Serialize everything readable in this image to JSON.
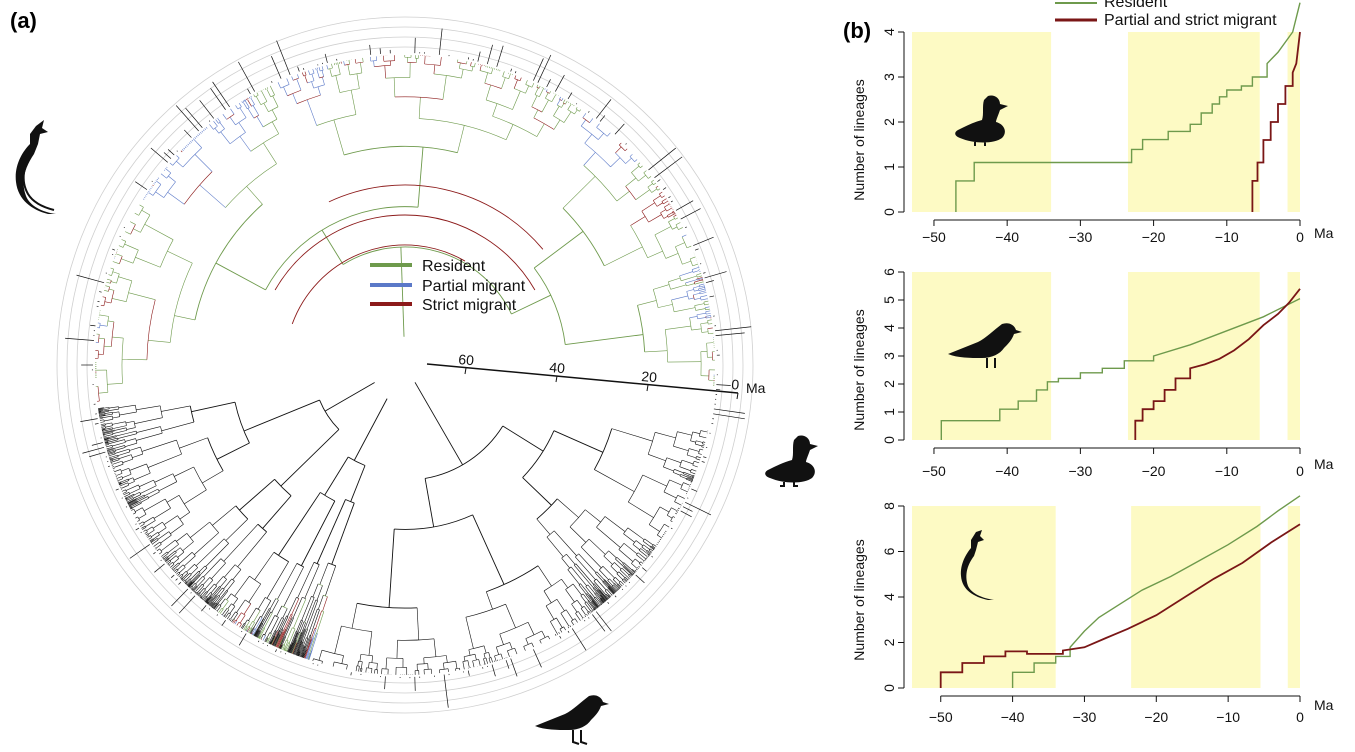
{
  "figure": {
    "panel_a_label": "(a)",
    "panel_b_label": "(b)"
  },
  "colors": {
    "resident": "#6e9a4c",
    "partial_migrant": "#5b79c8",
    "strict_migrant": "#8c1a1a",
    "partial_and_strict": "#7a1616",
    "highlight": "#fdfac4",
    "black_clade": "#111111"
  },
  "tree_legend": {
    "items": [
      {
        "label": "Resident",
        "color": "#6e9a4c"
      },
      {
        "label": "Partial migrant",
        "color": "#5b79c8"
      },
      {
        "label": "Strict migrant",
        "color": "#8c1a1a"
      }
    ]
  },
  "tree_scale": {
    "ticks": [
      "60",
      "40",
      "20",
      "0"
    ],
    "unit": "Ma"
  },
  "icons": [
    "bird-long-tail-silhouette-icon",
    "duck-silhouette-icon",
    "gull-silhouette-icon"
  ],
  "ltt_legend": {
    "items": [
      {
        "label": "Resident",
        "color": "#6e9a4c"
      },
      {
        "label": "Partial and strict migrant",
        "color": "#7a1616"
      }
    ]
  },
  "chart_data": [
    {
      "type": "line",
      "panel": "b-top",
      "icon": "duck-silhouette-icon",
      "ylabel": "Number of lineages",
      "xlabel": "Ma",
      "xlim": [
        -53,
        0
      ],
      "ylim": [
        0,
        4
      ],
      "xticks": [
        -50,
        -40,
        -30,
        -20,
        -10,
        0
      ],
      "yticks": [
        0,
        1,
        2,
        3,
        4
      ],
      "highlights": [
        [
          -53,
          -34
        ],
        [
          -23.5,
          -5.5
        ],
        [
          -1.7,
          0
        ]
      ],
      "series": [
        {
          "name": "Resident",
          "color": "#6e9a4c",
          "x": [
            -47,
            -47,
            -44.5,
            -44.5,
            -23,
            -23,
            -21.5,
            -21.5,
            -18,
            -18,
            -15,
            -15,
            -13.5,
            -13.5,
            -12,
            -12,
            -11,
            -11,
            -10,
            -10,
            -8,
            -8,
            -6.5,
            -6.5,
            -4.5,
            -4.5,
            -3,
            -1,
            0
          ],
          "y": [
            0,
            0.69,
            0.69,
            1.1,
            1.1,
            1.39,
            1.39,
            1.61,
            1.61,
            1.79,
            1.79,
            1.95,
            1.95,
            2.2,
            2.2,
            2.4,
            2.4,
            2.56,
            2.56,
            2.71,
            2.71,
            2.8,
            2.8,
            3.0,
            3.0,
            3.3,
            3.55,
            4.0,
            4.65
          ]
        },
        {
          "name": "Partial and strict migrant",
          "color": "#7a1616",
          "x": [
            -6.5,
            -6.5,
            -5.8,
            -5.8,
            -5.0,
            -5.0,
            -4.0,
            -4.0,
            -3.0,
            -3.0,
            -2.0,
            -2.0,
            -1.0,
            -1.0,
            -0.5,
            0
          ],
          "y": [
            0,
            0.69,
            0.69,
            1.1,
            1.1,
            1.6,
            1.6,
            2.0,
            2.0,
            2.4,
            2.4,
            2.8,
            2.8,
            3.1,
            3.3,
            4.0
          ]
        }
      ]
    },
    {
      "type": "line",
      "panel": "b-middle",
      "icon": "gull-silhouette-icon",
      "ylabel": "Number of lineages",
      "xlabel": "Ma",
      "xlim": [
        -53,
        0
      ],
      "ylim": [
        0,
        6
      ],
      "xticks": [
        -50,
        -40,
        -30,
        -20,
        -10,
        0
      ],
      "yticks": [
        0,
        1,
        2,
        3,
        4,
        5,
        6
      ],
      "highlights": [
        [
          -53,
          -34
        ],
        [
          -23.5,
          -5.5
        ],
        [
          -1.7,
          0
        ]
      ],
      "series": [
        {
          "name": "Resident",
          "color": "#6e9a4c",
          "x": [
            -49,
            -49,
            -41,
            -41,
            -38.5,
            -38.5,
            -36,
            -36,
            -34.5,
            -34.5,
            -33,
            -33,
            -30,
            -30,
            -27,
            -27,
            -24,
            -24,
            -20,
            -20,
            -15,
            -10,
            -5,
            0
          ],
          "y": [
            0,
            0.69,
            0.69,
            1.1,
            1.1,
            1.39,
            1.39,
            1.79,
            1.79,
            2.08,
            2.08,
            2.2,
            2.2,
            2.4,
            2.4,
            2.56,
            2.56,
            2.83,
            2.83,
            3.0,
            3.4,
            3.9,
            4.4,
            5.05
          ]
        },
        {
          "name": "Partial and strict migrant",
          "color": "#7a1616",
          "x": [
            -22.5,
            -22.5,
            -21.5,
            -21.5,
            -20,
            -20,
            -18.5,
            -18.5,
            -17,
            -17,
            -15,
            -15,
            -13,
            -11,
            -9,
            -7,
            -5,
            -3,
            -1.5,
            0
          ],
          "y": [
            0,
            0.69,
            0.69,
            1.1,
            1.1,
            1.39,
            1.39,
            1.79,
            1.79,
            2.2,
            2.2,
            2.56,
            2.7,
            2.9,
            3.2,
            3.6,
            4.1,
            4.5,
            4.9,
            5.4
          ]
        }
      ]
    },
    {
      "type": "line",
      "panel": "b-bottom",
      "icon": "bird-long-tail-silhouette-icon",
      "ylabel": "Number of lineages",
      "xlabel": "Ma",
      "xlim": [
        -54,
        0
      ],
      "ylim": [
        0,
        8
      ],
      "xticks": [
        -50,
        -40,
        -30,
        -20,
        -10,
        0
      ],
      "yticks": [
        0,
        2,
        4,
        6,
        8
      ],
      "highlights": [
        [
          -54,
          -34
        ],
        [
          -23.5,
          -5.5
        ],
        [
          -1.7,
          0
        ]
      ],
      "series": [
        {
          "name": "Resident",
          "color": "#6e9a4c",
          "x": [
            -40,
            -40,
            -37,
            -37,
            -34,
            -34,
            -32,
            -32,
            -30,
            -28,
            -25,
            -22,
            -18,
            -14,
            -10,
            -6,
            -3,
            0
          ],
          "y": [
            0,
            0.69,
            0.69,
            1.1,
            1.1,
            1.39,
            1.39,
            1.79,
            2.5,
            3.1,
            3.7,
            4.3,
            4.9,
            5.6,
            6.3,
            7.1,
            7.8,
            8.45
          ]
        },
        {
          "name": "Partial and strict migrant",
          "color": "#7a1616",
          "x": [
            -50,
            -50,
            -47,
            -47,
            -44,
            -44,
            -41,
            -41,
            -38,
            -38,
            -33,
            -33,
            -30,
            -27,
            -24,
            -20,
            -16,
            -12,
            -8,
            -4,
            0
          ],
          "y": [
            0,
            0.69,
            0.69,
            1.1,
            1.1,
            1.39,
            1.39,
            1.61,
            1.61,
            1.5,
            1.5,
            1.65,
            1.79,
            2.2,
            2.6,
            3.2,
            4.0,
            4.8,
            5.5,
            6.4,
            7.2
          ]
        }
      ]
    }
  ]
}
